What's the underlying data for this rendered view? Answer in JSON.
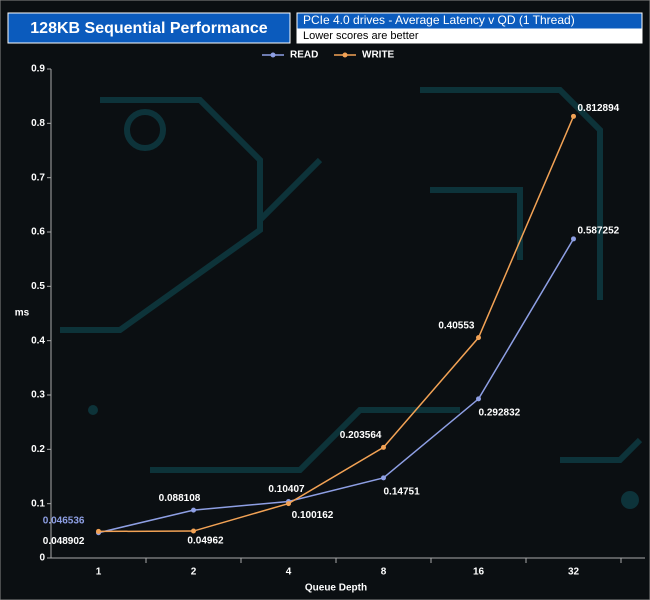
{
  "chart_data": {
    "type": "line",
    "title": "128KB Sequential Performance",
    "subtitle": "PCIe 4.0 drives - Average Latency v QD (1 Thread)",
    "note": "Lower scores are better",
    "x_label": "Queue Depth",
    "y_label": "ms",
    "categories": [
      "1",
      "2",
      "4",
      "8",
      "16",
      "32"
    ],
    "series": [
      {
        "name": "READ",
        "color": "#8e9fe4",
        "values": [
          0.046536,
          0.088108,
          0.10407,
          0.14751,
          0.292832,
          0.587252
        ]
      },
      {
        "name": "WRITE",
        "color": "#f2a255",
        "values": [
          0.048902,
          0.04962,
          0.100162,
          0.203564,
          0.40553,
          0.812894
        ]
      }
    ],
    "ylim": [
      0,
      0.9
    ],
    "yticks": [
      0,
      0.1,
      0.2,
      0.3,
      0.4,
      0.5,
      0.6,
      0.7,
      0.8,
      0.9
    ],
    "legend": "top"
  }
}
